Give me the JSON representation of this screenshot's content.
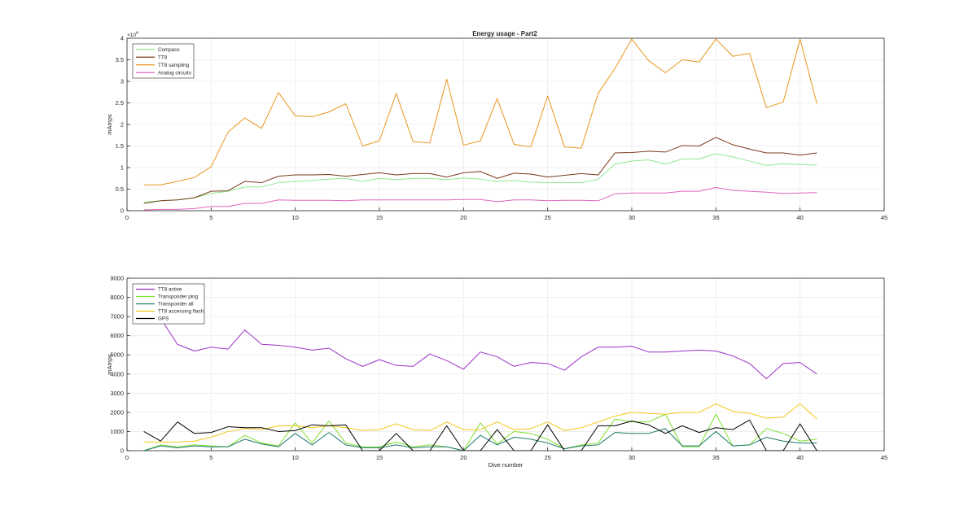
{
  "figure_title": "Energy usage - Part2",
  "chart_data": [
    {
      "type": "line",
      "title": "Energy usage - Part2",
      "xlabel": "",
      "ylabel": "mAmps",
      "xlim": [
        0,
        45
      ],
      "ylim": [
        0,
        40000
      ],
      "x_ticks": [
        0,
        5,
        10,
        15,
        20,
        25,
        30,
        35,
        40,
        45
      ],
      "y_ticks": [
        0,
        5000,
        10000,
        15000,
        20000,
        25000,
        30000,
        35000,
        40000
      ],
      "y_tick_labels": [
        "0",
        "0.5",
        "1",
        "1.5",
        "2",
        "2.5",
        "3",
        "3.5",
        "4"
      ],
      "y_exponent": "×10",
      "y_exponent_power": "4",
      "grid": true,
      "legend_position": "top-left",
      "x": [
        1,
        2,
        3,
        4,
        5,
        6,
        7,
        8,
        9,
        10,
        11,
        12,
        13,
        14,
        15,
        16,
        17,
        18,
        19,
        20,
        21,
        22,
        23,
        24,
        25,
        26,
        27,
        28,
        29,
        30,
        31,
        32,
        33,
        34,
        35,
        36,
        37,
        38,
        39,
        40,
        41
      ],
      "series": [
        {
          "name": "Compass",
          "color": "#8ee88e",
          "values": [
            2000,
            2300,
            2500,
            3000,
            4000,
            4500,
            5500,
            5500,
            6500,
            6800,
            7000,
            7300,
            7500,
            6800,
            7500,
            7200,
            7500,
            7500,
            7200,
            7600,
            7300,
            6800,
            7000,
            6600,
            6500,
            6500,
            6500,
            7300,
            10800,
            11500,
            11800,
            10800,
            12000,
            12000,
            13200,
            12500,
            11500,
            10500,
            10900,
            10700,
            10600
          ]
        },
        {
          "name": "TT8",
          "color": "#7b3b1b",
          "values": [
            1700,
            2300,
            2500,
            3000,
            4500,
            4600,
            6800,
            6500,
            8000,
            8300,
            8300,
            8400,
            8000,
            8400,
            8800,
            8300,
            8600,
            8600,
            7800,
            8800,
            9100,
            7500,
            8700,
            8500,
            7800,
            8200,
            8600,
            8300,
            13400,
            13500,
            13800,
            13600,
            15100,
            15000,
            17000,
            15300,
            14300,
            13400,
            13400,
            12900,
            13400
          ]
        },
        {
          "name": "TT8 sampling",
          "color": "#e8961e",
          "values": [
            6000,
            6000,
            6800,
            7700,
            10200,
            18200,
            21500,
            19100,
            27400,
            22000,
            21800,
            22900,
            24800,
            15000,
            16200,
            27200,
            16000,
            15700,
            30500,
            15200,
            16200,
            26000,
            15400,
            14800,
            26600,
            14800,
            14500,
            27200,
            33000,
            39800,
            34800,
            32000,
            35000,
            34500,
            39800,
            35800,
            36500,
            23900,
            25200,
            39800,
            24800
          ]
        },
        {
          "name": "Analog circuits",
          "color": "#e066c0",
          "values": [
            200,
            300,
            300,
            500,
            1000,
            1000,
            1700,
            1700,
            2500,
            2400,
            2400,
            2400,
            2300,
            2500,
            2500,
            2500,
            2500,
            2500,
            2500,
            2600,
            2600,
            2100,
            2500,
            2500,
            2300,
            2400,
            2400,
            2300,
            3900,
            4100,
            4100,
            4100,
            4500,
            4500,
            5400,
            4700,
            4500,
            4300,
            4000,
            4100,
            4200
          ]
        }
      ]
    },
    {
      "type": "line",
      "title": "",
      "xlabel": "Dive number",
      "ylabel": "mAmps",
      "xlim": [
        0,
        45
      ],
      "ylim": [
        0,
        9000
      ],
      "x_ticks": [
        0,
        5,
        10,
        15,
        20,
        25,
        30,
        35,
        40,
        45
      ],
      "y_ticks": [
        0,
        1000,
        2000,
        3000,
        4000,
        5000,
        6000,
        7000,
        8000,
        9000
      ],
      "y_tick_labels": [
        "0",
        "1000",
        "2000",
        "3000",
        "4000",
        "5000",
        "6000",
        "7000",
        "8000",
        "9000"
      ],
      "grid": true,
      "legend_position": "top-left",
      "x": [
        1,
        2,
        3,
        4,
        5,
        6,
        7,
        8,
        9,
        10,
        11,
        12,
        13,
        14,
        15,
        16,
        17,
        18,
        19,
        20,
        21,
        22,
        23,
        24,
        25,
        26,
        27,
        28,
        29,
        30,
        31,
        32,
        33,
        34,
        35,
        36,
        37,
        38,
        39,
        40,
        41
      ],
      "series": [
        {
          "name": "TT8 active",
          "color": "#9b30c8",
          "values": [
            7700,
            6900,
            5550,
            5200,
            5400,
            5300,
            6300,
            5550,
            5500,
            5400,
            5250,
            5350,
            4800,
            4400,
            4750,
            4450,
            4400,
            5050,
            4700,
            4250,
            5150,
            4900,
            4400,
            4600,
            4550,
            4200,
            4900,
            5400,
            5400,
            5450,
            5150,
            5150,
            5200,
            5250,
            5200,
            4950,
            4550,
            3750,
            4550,
            4600,
            4000
          ]
        },
        {
          "name": "Transponder ping",
          "color": "#7fe030",
          "values": [
            0,
            300,
            200,
            300,
            250,
            200,
            800,
            400,
            250,
            1450,
            400,
            1550,
            400,
            200,
            200,
            450,
            200,
            300,
            200,
            0,
            1450,
            350,
            1000,
            900,
            600,
            100,
            300,
            400,
            1650,
            1500,
            1500,
            1900,
            200,
            200,
            1900,
            250,
            300,
            1150,
            900,
            500,
            600
          ]
        },
        {
          "name": "Transponder all",
          "color": "#1f7a6b",
          "values": [
            0,
            250,
            150,
            250,
            200,
            200,
            600,
            350,
            200,
            900,
            300,
            950,
            300,
            150,
            150,
            300,
            150,
            200,
            200,
            0,
            800,
            300,
            700,
            600,
            400,
            100,
            250,
            300,
            950,
            900,
            900,
            1150,
            250,
            250,
            1000,
            250,
            300,
            700,
            500,
            400,
            400
          ]
        },
        {
          "name": "TT8 accessing flash",
          "color": "#f0c818",
          "values": [
            450,
            450,
            450,
            500,
            700,
            1000,
            1150,
            1100,
            1300,
            1300,
            1200,
            1300,
            1200,
            1050,
            1100,
            1400,
            1100,
            1050,
            1500,
            1100,
            1100,
            1500,
            1100,
            1150,
            1500,
            1050,
            1200,
            1500,
            1800,
            2000,
            1950,
            1900,
            2000,
            2000,
            2450,
            2050,
            1950,
            1700,
            1750,
            2450,
            1650
          ]
        },
        {
          "name": "GPS",
          "color": "#000000",
          "values": [
            1000,
            500,
            1500,
            900,
            950,
            1250,
            1200,
            1200,
            1000,
            1050,
            1350,
            1300,
            1350,
            0,
            0,
            900,
            0,
            0,
            1300,
            0,
            0,
            1100,
            0,
            0,
            1350,
            0,
            0,
            1300,
            1300,
            1550,
            1350,
            900,
            1300,
            950,
            1200,
            1100,
            1600,
            0,
            0,
            1400,
            0
          ]
        }
      ]
    }
  ]
}
